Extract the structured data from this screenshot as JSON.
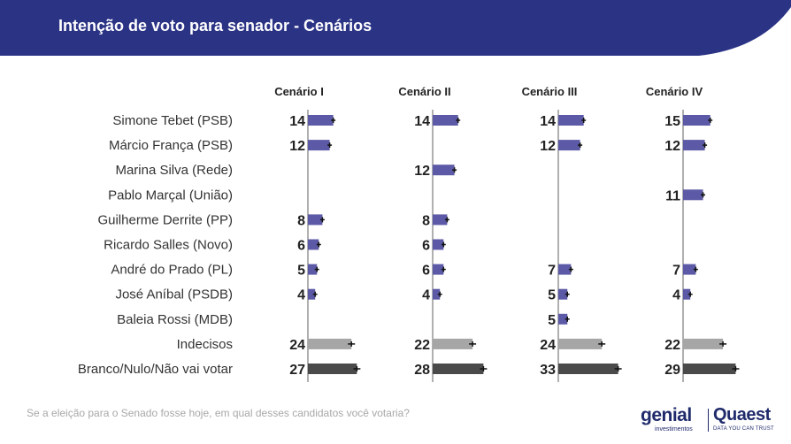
{
  "header": {
    "title": "Intenção de voto para senador - Cenários"
  },
  "footnote": "Se a eleição para o Senado fosse hoje, em qual desses candidatos você votaria?",
  "logos": {
    "genial": {
      "name": "genial",
      "sub": "investimentos"
    },
    "quaest": {
      "name": "Quaest",
      "sub": "DATA YOU CAN TRUST"
    }
  },
  "colors": {
    "header_bg": "#2b3385",
    "candidate": "#5c5aa6",
    "undecided": "#a6a6a6",
    "blank_null": "#4a4a4a",
    "axis": "#b0b0b0",
    "error_bar": "#111111"
  },
  "chart_data": {
    "type": "bar",
    "orientation": "horizontal",
    "scenarios": [
      "Cenário I",
      "Cenário II",
      "Cenário III",
      "Cenário IV"
    ],
    "categories": [
      "Simone Tebet (PSB)",
      "Márcio França (PSB)",
      "Marina Silva (Rede)",
      "Pablo Marçal (União)",
      "Guilherme Derrite (PP)",
      "Ricardo Salles (Novo)",
      "André do Prado (PL)",
      "José Aníbal (PSDB)",
      "Baleia Rossi (MDB)",
      "Indecisos",
      "Branco/Nulo/Não vai votar"
    ],
    "series": [
      {
        "name": "Cenário I",
        "values": [
          14,
          12,
          null,
          null,
          8,
          6,
          5,
          4,
          null,
          24,
          27
        ]
      },
      {
        "name": "Cenário II",
        "values": [
          14,
          null,
          12,
          null,
          8,
          6,
          6,
          4,
          null,
          22,
          28
        ]
      },
      {
        "name": "Cenário III",
        "values": [
          14,
          12,
          null,
          null,
          null,
          null,
          7,
          5,
          5,
          24,
          33
        ]
      },
      {
        "name": "Cenário IV",
        "values": [
          15,
          12,
          null,
          11,
          null,
          null,
          7,
          4,
          null,
          22,
          29
        ]
      }
    ],
    "category_kind": [
      "candidate",
      "candidate",
      "candidate",
      "candidate",
      "candidate",
      "candidate",
      "candidate",
      "candidate",
      "candidate",
      "undecided",
      "blank_null"
    ],
    "error_bars": true
  }
}
